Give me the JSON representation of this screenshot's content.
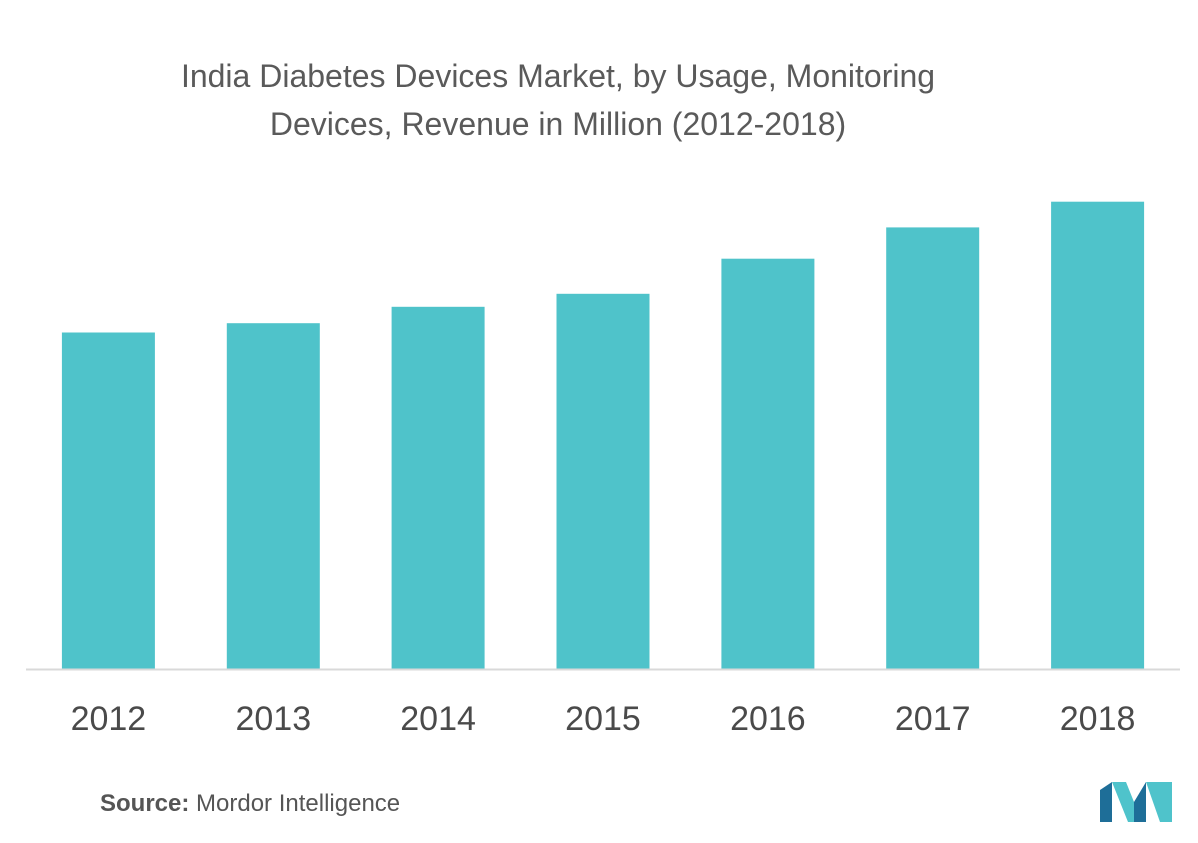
{
  "source": {
    "label": "Source:",
    "text": " Mordor Intelligence"
  },
  "logo": {
    "name": "mordor-intelligence-logo",
    "colors": [
      "#1e6e98",
      "#4fc3cb"
    ]
  },
  "colors": {
    "bar": "#4fc3ca",
    "axis": "#d9d9d9",
    "title": "#5a5a5a",
    "tick_label": "#4a4a4a"
  },
  "chart_data": {
    "type": "bar",
    "title": "India Diabetes Devices Market, by Usage, Monitoring Devices, Revenue in Million (2012-2018)",
    "title_lines": [
      "India Diabetes Devices Market, by Usage, Monitoring",
      "Devices, Revenue in Million (2012-2018)"
    ],
    "xlabel": "",
    "ylabel": "",
    "categories": [
      "2012",
      "2013",
      "2014",
      "2015",
      "2016",
      "2017",
      "2018"
    ],
    "values": [
      72,
      74,
      77.5,
      80.3,
      87.8,
      94.5,
      100
    ],
    "ylim": [
      0,
      104
    ],
    "grid": false,
    "legend": "none",
    "y_axis_labels_shown": false
  }
}
